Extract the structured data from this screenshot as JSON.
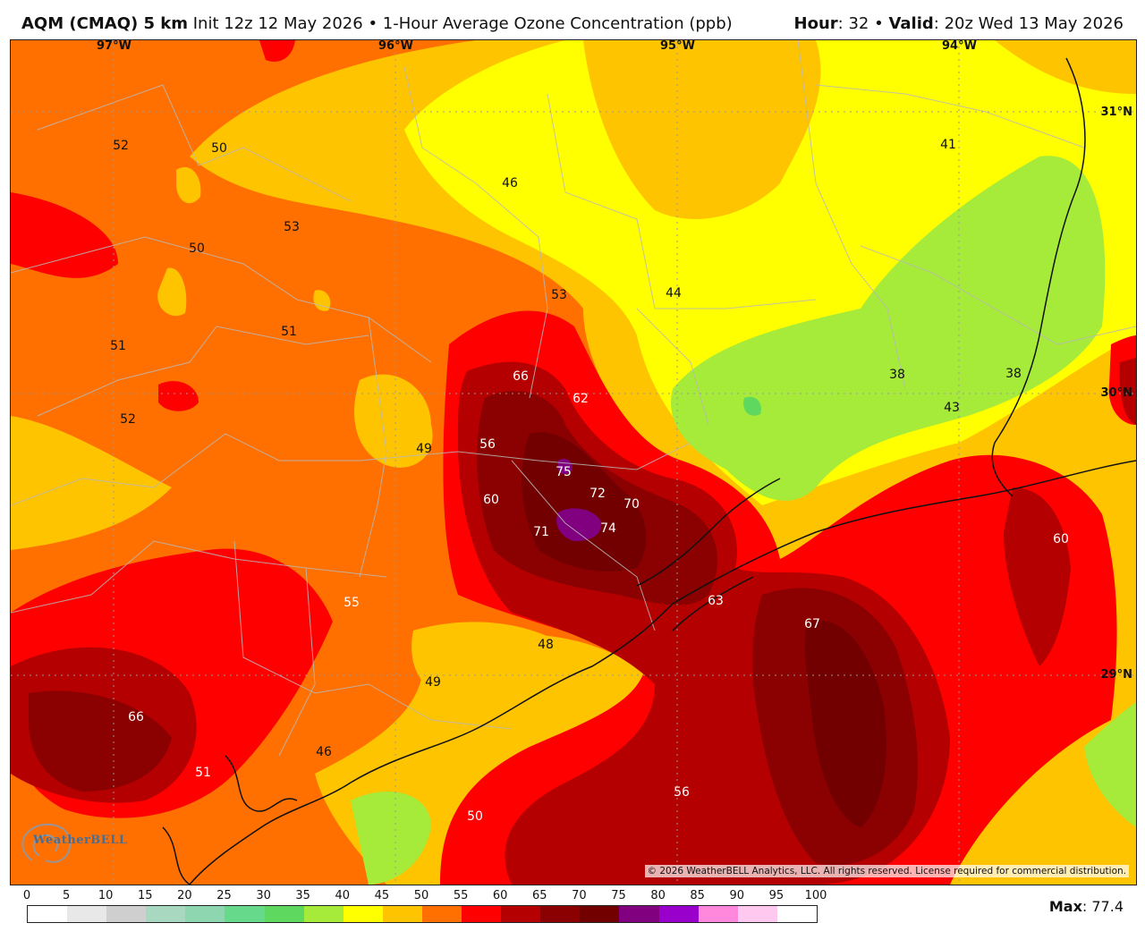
{
  "header": {
    "model": "AQM (CMAQ) 5 km",
    "init": "Init 12z 12 May 2026",
    "separator": "•",
    "product": "1-Hour Average Ozone Concentration (ppb)",
    "hour_label": "Hour",
    "hour_value": ": 32",
    "valid_label": "Valid",
    "valid_value": ": 20z Wed 13 May 2026"
  },
  "graticule": {
    "lon": [
      "97°W",
      "96°W",
      "95°W",
      "94°W"
    ],
    "lat": [
      "31°N",
      "30°N",
      "29°N"
    ]
  },
  "contour_values": [
    "52",
    "50",
    "53",
    "50",
    "51",
    "51",
    "52",
    "46",
    "53",
    "44",
    "66",
    "62",
    "56",
    "49",
    "75",
    "72",
    "70",
    "60",
    "71",
    "74",
    "41",
    "38",
    "38",
    "43",
    "55",
    "48",
    "49",
    "63",
    "67",
    "60",
    "66",
    "46",
    "51",
    "56",
    "50"
  ],
  "copyright": "© 2026 WeatherBELL Analytics, LLC. All rights reserved. License required for commercial distribution.",
  "logo_text": "WeatherBELL",
  "scale": {
    "ticks": [
      "0",
      "5",
      "10",
      "15",
      "20",
      "25",
      "30",
      "35",
      "40",
      "45",
      "50",
      "55",
      "60",
      "65",
      "70",
      "75",
      "80",
      "85",
      "90",
      "95",
      "100"
    ],
    "colors": [
      "#ffffff",
      "#e8e8e8",
      "#cfcfcf",
      "#a8d8c0",
      "#8ed6b0",
      "#66d98a",
      "#5fd85f",
      "#a6ea3a",
      "#ffff00",
      "#ffc400",
      "#ff7000",
      "#ff0000",
      "#b40000",
      "#8b0000",
      "#720000",
      "#800080",
      "#9900cc",
      "#ff88dd",
      "#ffc8ee",
      "#ffffff"
    ]
  },
  "max": {
    "label": "Max",
    "value": ": 77.4"
  }
}
